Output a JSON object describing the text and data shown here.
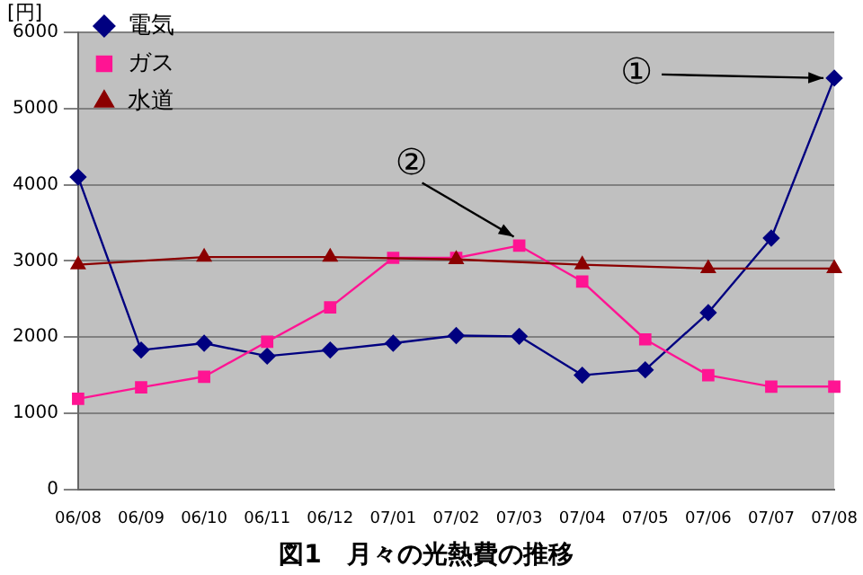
{
  "chart_data": {
    "type": "line",
    "title": "図1　月々の光熱費の推移",
    "ylabel": "[円]",
    "categories": [
      "06/08",
      "06/09",
      "06/10",
      "06/11",
      "06/12",
      "07/01",
      "07/02",
      "07/03",
      "07/04",
      "07/05",
      "07/06",
      "07/07",
      "07/08"
    ],
    "series": [
      {
        "name": "電気",
        "color": "#000080",
        "marker": "diamond",
        "values": [
          4100,
          1830,
          1920,
          1750,
          1830,
          1920,
          2020,
          2010,
          1500,
          1570,
          2320,
          3300,
          5400
        ]
      },
      {
        "name": "ガス",
        "color": "#ff1493",
        "marker": "square",
        "values": [
          1190,
          1340,
          1480,
          1940,
          2390,
          3040,
          3040,
          3200,
          2730,
          1970,
          1500,
          1350,
          1350
        ]
      },
      {
        "name": "水道",
        "color": "#8b0000",
        "marker": "triangle",
        "values": [
          2950,
          null,
          3050,
          null,
          3050,
          null,
          3020,
          null,
          2950,
          null,
          2900,
          null,
          2900
        ]
      }
    ],
    "ylim": [
      0,
      6000
    ],
    "yticks": [
      0,
      1000,
      2000,
      3000,
      4000,
      5000,
      6000
    ],
    "grid": "y",
    "legend": "top left",
    "line_style": "solid",
    "annotations": [
      {
        "text": "①",
        "x": "07/08",
        "y": 5400
      },
      {
        "text": "②",
        "x": "07/03",
        "y": 3200
      }
    ]
  }
}
